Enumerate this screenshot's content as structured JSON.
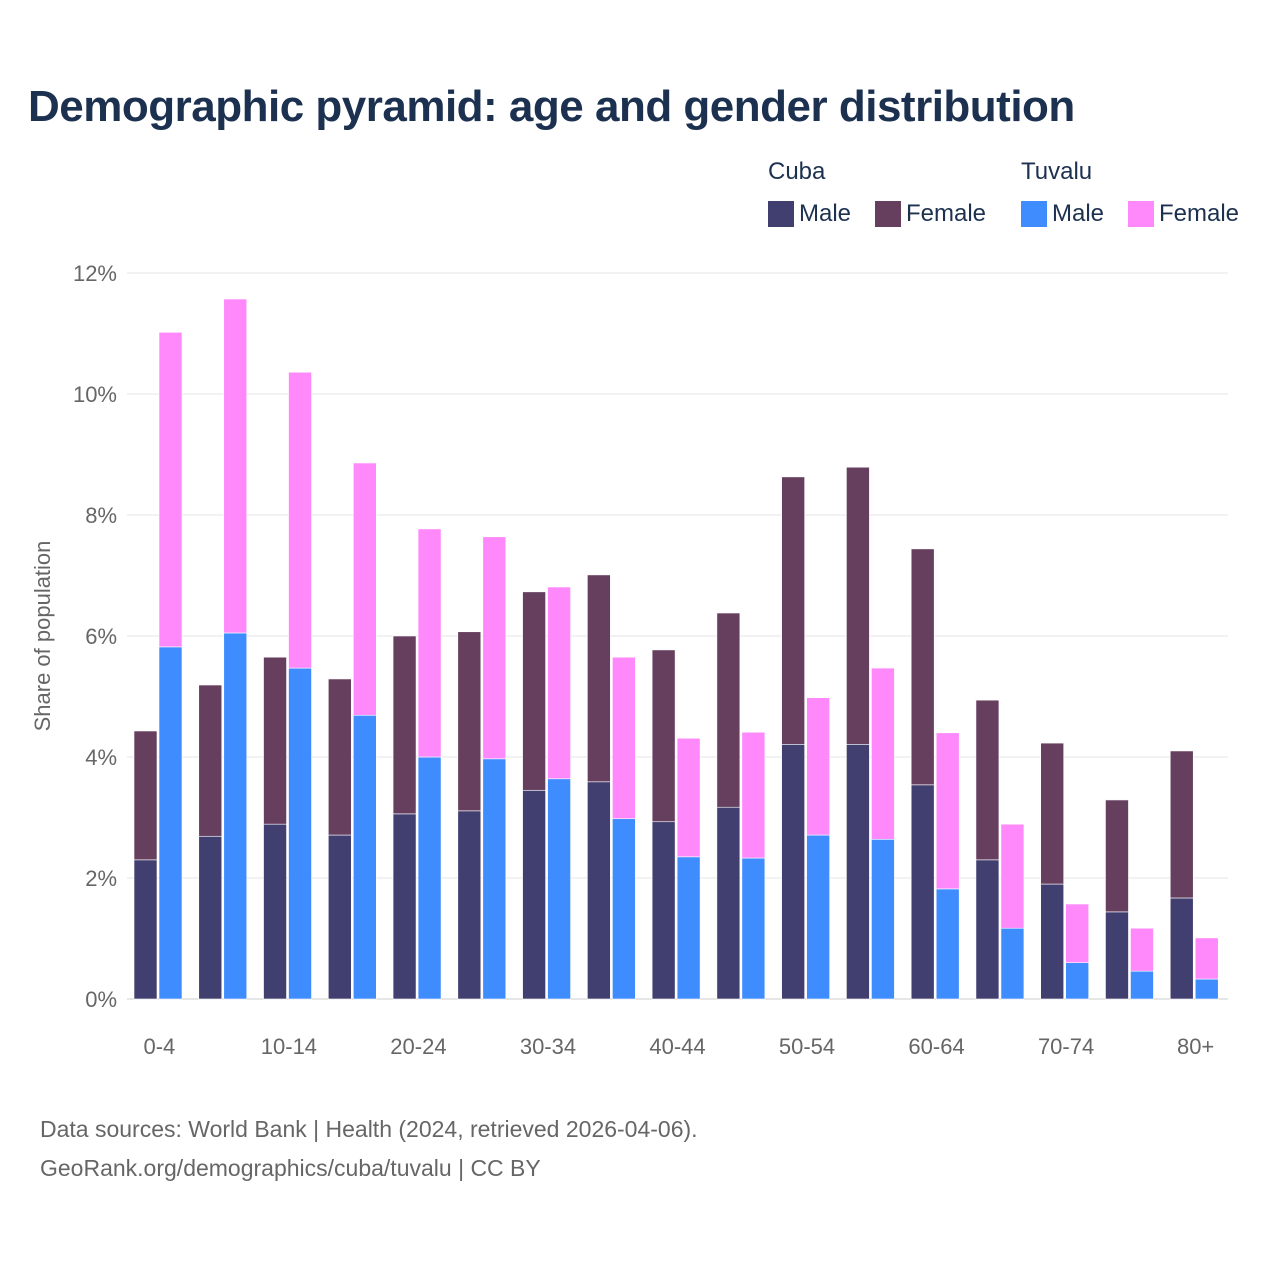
{
  "chart_data": {
    "type": "bar",
    "stacked": true,
    "title": "Demographic pyramid: age and gender distribution",
    "ylabel": "Share of population",
    "xlabel": "",
    "ylim": [
      0,
      12
    ],
    "yticks": [
      0,
      2,
      4,
      6,
      8,
      10,
      12
    ],
    "ytick_labels": [
      "0%",
      "2%",
      "4%",
      "6%",
      "8%",
      "10%",
      "12%"
    ],
    "grid": true,
    "legend_position": "top-right",
    "categories": [
      "0-4",
      "5-9",
      "10-14",
      "15-19",
      "20-24",
      "25-29",
      "30-34",
      "35-39",
      "40-44",
      "45-49",
      "50-54",
      "55-59",
      "60-64",
      "65-69",
      "70-74",
      "75-79",
      "80+"
    ],
    "xtick_labels": [
      "0-4",
      "",
      "10-14",
      "",
      "20-24",
      "",
      "30-34",
      "",
      "40-44",
      "",
      "50-54",
      "",
      "60-64",
      "",
      "70-74",
      "",
      "80+"
    ],
    "groups": [
      {
        "name": "Cuba",
        "series": [
          {
            "name": "Male",
            "color": "#413e70",
            "values": [
              2.3,
              2.69,
              2.89,
              2.71,
              3.06,
              3.11,
              3.45,
              3.59,
              2.93,
              3.17,
              4.21,
              4.21,
              3.54,
              2.3,
              1.9,
              1.44,
              1.67
            ]
          },
          {
            "name": "Female",
            "color": "#663f5f",
            "values": [
              2.13,
              2.5,
              2.76,
              2.58,
              2.94,
              2.96,
              3.28,
              3.42,
              2.84,
              3.21,
              4.42,
              4.58,
              3.9,
              2.64,
              2.33,
              1.85,
              2.43
            ]
          }
        ]
      },
      {
        "name": "Tuvalu",
        "series": [
          {
            "name": "Male",
            "color": "#3f8cff",
            "values": [
              5.82,
              6.05,
              5.47,
              4.69,
              4.0,
              3.97,
              3.64,
              2.98,
              2.35,
              2.33,
              2.71,
              2.64,
              1.82,
              1.17,
              0.6,
              0.46,
              0.33
            ]
          },
          {
            "name": "Female",
            "color": "#ff88fa",
            "values": [
              5.2,
              5.52,
              4.89,
              4.17,
              3.77,
              3.67,
              3.17,
              2.67,
              1.96,
              2.08,
              2.27,
              2.83,
              2.58,
              1.72,
              0.97,
              0.71,
              0.68
            ]
          }
        ]
      }
    ]
  },
  "footer": {
    "line1": "Data sources: World Bank | Health (2024, retrieved 2026-04-06).",
    "line2": "GeoRank.org/demographics/cuba/tuvalu | CC BY"
  }
}
